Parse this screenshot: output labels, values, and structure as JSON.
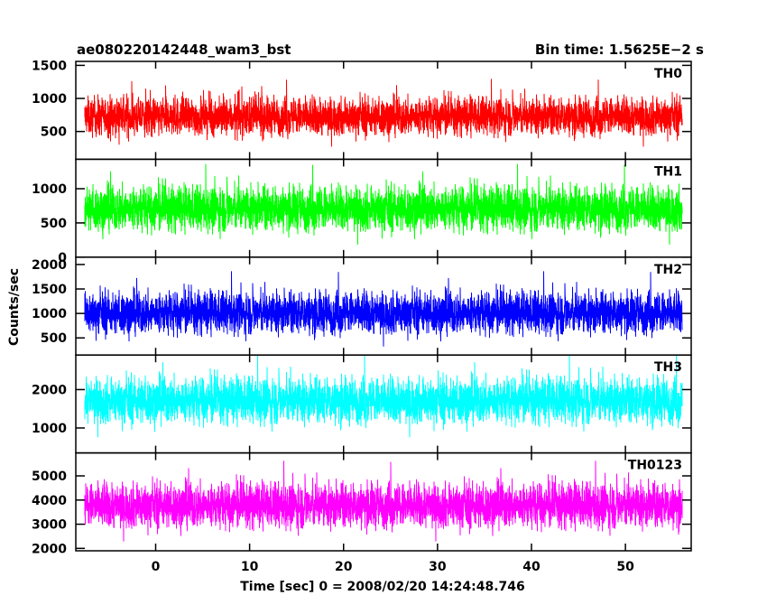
{
  "header": {
    "title": "ae080220142448_wam3_bst",
    "bin_time": "Bin time: 1.5625E−2 s"
  },
  "chart_data": {
    "type": "line",
    "xlabel": "Time [sec] 0 = 2008/02/20 14:24:48.746",
    "ylabel": "Counts/sec",
    "xlim": [
      -8.5,
      57
    ],
    "x_data_range": [
      -7.5,
      56
    ],
    "x_ticks": [
      0,
      10,
      20,
      30,
      40,
      50
    ],
    "x_tick_labels": [
      "0",
      "10",
      "20",
      "30",
      "40",
      "50"
    ],
    "bin_time_s": 0.015625,
    "panels": [
      {
        "label": "TH0",
        "color": "#ff0000",
        "ylim": [
          80,
          1560
        ],
        "y_ticks": [
          500,
          1000,
          1500
        ],
        "y_tick_labels": [
          "500",
          "1000",
          "1500"
        ],
        "mean": 720,
        "noise": 200,
        "min_clip": 150
      },
      {
        "label": "TH1",
        "color": "#00ff00",
        "ylim": [
          0,
          1430
        ],
        "y_ticks": [
          0,
          500,
          1000
        ],
        "y_tick_labels": [
          "0",
          "500",
          "1000"
        ],
        "mean": 700,
        "noise": 230,
        "min_clip": 30
      },
      {
        "label": "TH2",
        "color": "#0000ff",
        "ylim": [
          150,
          2150
        ],
        "y_ticks": [
          500,
          1000,
          1500,
          2000
        ],
        "y_tick_labels": [
          "500",
          "1000",
          "1500",
          "2000"
        ],
        "mean": 1000,
        "noise": 300,
        "min_clip": 250
      },
      {
        "label": "TH3",
        "color": "#00ffff",
        "ylim": [
          350,
          2900
        ],
        "y_ticks": [
          1000,
          2000
        ],
        "y_tick_labels": [
          "1000",
          "2000"
        ],
        "mean": 1700,
        "noise": 420,
        "min_clip": 450
      },
      {
        "label": "TH0123",
        "color": "#ff00ff",
        "ylim": [
          1900,
          5950
        ],
        "y_ticks": [
          2000,
          3000,
          4000,
          5000
        ],
        "y_tick_labels": [
          "2000",
          "3000",
          "4000",
          "5000"
        ],
        "mean": 3750,
        "noise": 650,
        "min_clip": 1950
      }
    ]
  }
}
